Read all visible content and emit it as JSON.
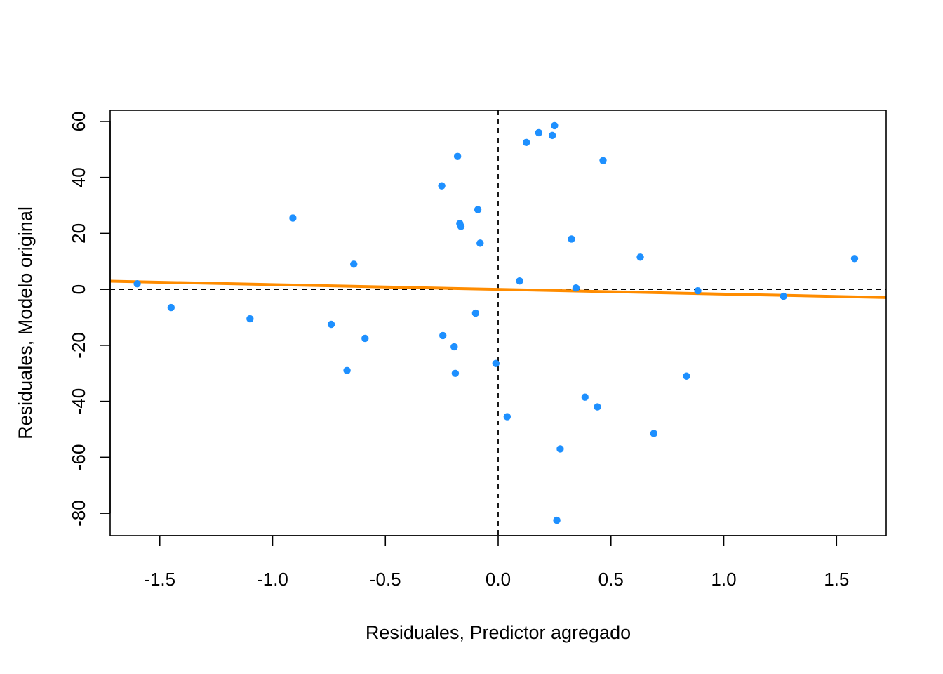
{
  "chart_data": {
    "type": "scatter",
    "title": "",
    "xlabel": "Residuales, Predictor agregado",
    "ylabel": "Residuales, Modelo original",
    "xlim": [
      -1.72,
      1.72
    ],
    "ylim": [
      -88,
      64
    ],
    "xticks": [
      -1.5,
      -1.0,
      -0.5,
      0.0,
      0.5,
      1.0,
      1.5
    ],
    "xtick_labels": [
      "-1.5",
      "-1.0",
      "-0.5",
      "0.0",
      "0.5",
      "1.0",
      "1.5"
    ],
    "yticks": [
      -80,
      -60,
      -40,
      -20,
      0,
      20,
      40,
      60
    ],
    "ytick_labels": [
      "-80",
      "-60",
      "-40",
      "-20",
      "0",
      "20",
      "40",
      "60"
    ],
    "grid": false,
    "reference_lines": {
      "x": 0,
      "y": 0,
      "style": "dashed"
    },
    "point_color": "#1e90ff",
    "fit_line": {
      "color": "#ff8c00",
      "slope": -1.7,
      "intercept": 0
    },
    "points": [
      {
        "x": -1.6,
        "y": 2
      },
      {
        "x": -1.45,
        "y": -6.5
      },
      {
        "x": -1.1,
        "y": -10.5
      },
      {
        "x": -0.91,
        "y": 25.5
      },
      {
        "x": -0.74,
        "y": -12.5
      },
      {
        "x": -0.67,
        "y": -29
      },
      {
        "x": -0.64,
        "y": 9
      },
      {
        "x": -0.59,
        "y": -17.5
      },
      {
        "x": -0.25,
        "y": 37
      },
      {
        "x": -0.245,
        "y": -16.5
      },
      {
        "x": -0.195,
        "y": -20.5
      },
      {
        "x": -0.19,
        "y": -30
      },
      {
        "x": -0.18,
        "y": 47.5
      },
      {
        "x": -0.17,
        "y": 23.5
      },
      {
        "x": -0.165,
        "y": 22.5
      },
      {
        "x": -0.1,
        "y": -8.5
      },
      {
        "x": -0.09,
        "y": 28.5
      },
      {
        "x": -0.08,
        "y": 16.5
      },
      {
        "x": -0.01,
        "y": -26.5
      },
      {
        "x": 0.04,
        "y": -45.5
      },
      {
        "x": 0.095,
        "y": 3
      },
      {
        "x": 0.125,
        "y": 52.5
      },
      {
        "x": 0.18,
        "y": 56
      },
      {
        "x": 0.24,
        "y": 55
      },
      {
        "x": 0.25,
        "y": 58.5
      },
      {
        "x": 0.26,
        "y": -82.5
      },
      {
        "x": 0.275,
        "y": -57
      },
      {
        "x": 0.325,
        "y": 18
      },
      {
        "x": 0.345,
        "y": 0.5
      },
      {
        "x": 0.385,
        "y": -38.5
      },
      {
        "x": 0.44,
        "y": -42
      },
      {
        "x": 0.465,
        "y": 46
      },
      {
        "x": 0.63,
        "y": 11.5
      },
      {
        "x": 0.69,
        "y": -51.5
      },
      {
        "x": 0.835,
        "y": -31
      },
      {
        "x": 0.885,
        "y": -0.5
      },
      {
        "x": 1.265,
        "y": -2.5
      },
      {
        "x": 1.58,
        "y": 11
      }
    ]
  }
}
